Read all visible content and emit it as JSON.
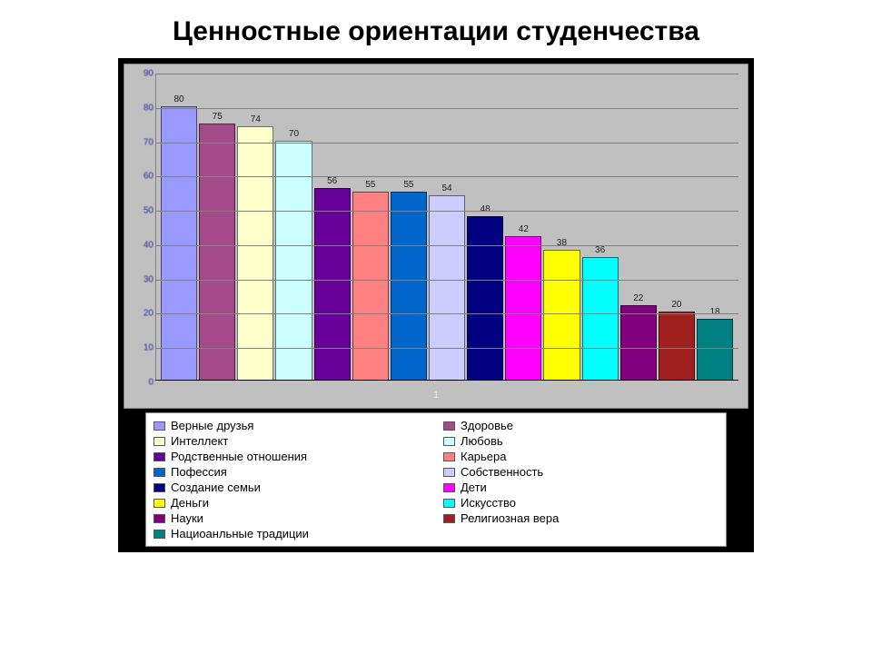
{
  "title": "Ценностные ориентации студенчества",
  "chart": {
    "type": "bar",
    "x_axis_label": "1",
    "background_color": "#c0c0c0",
    "outer_background": "#000000",
    "grid_color": "#808080",
    "y_tick_color": "#2a2aa0",
    "y_tick_fontsize": 10,
    "bar_label_fontsize": 10,
    "legend_fontsize": 13,
    "title_fontsize": 30,
    "bar_border_color": "rgba(0,0,0,0.55)",
    "ylim": [
      0,
      90
    ],
    "yticks": [
      0,
      10,
      20,
      30,
      40,
      50,
      60,
      70,
      80,
      90
    ],
    "series": [
      {
        "label": "Верные друзья",
        "value": 80,
        "color": "#9999ff"
      },
      {
        "label": "Здоровье",
        "value": 75,
        "color": "#a44a8a"
      },
      {
        "label": "Интеллект",
        "value": 74,
        "color": "#ffffcc"
      },
      {
        "label": "Любовь",
        "value": 70,
        "color": "#ccffff"
      },
      {
        "label": "Родственные отношения",
        "value": 56,
        "color": "#660099"
      },
      {
        "label": "Карьера",
        "value": 55,
        "color": "#ff8080"
      },
      {
        "label": "Пофессия",
        "value": 55,
        "color": "#0066cc"
      },
      {
        "label": "Собственность",
        "value": 54,
        "color": "#ccccff"
      },
      {
        "label": "Создание семьи",
        "value": 48,
        "color": "#000080"
      },
      {
        "label": "Дети",
        "value": 42,
        "color": "#ff00ff"
      },
      {
        "label": "Деньги",
        "value": 38,
        "color": "#ffff00"
      },
      {
        "label": "Искусство",
        "value": 36,
        "color": "#00ffff"
      },
      {
        "label": "Науки",
        "value": 22,
        "color": "#800080"
      },
      {
        "label": "Религиозная вера",
        "value": 20,
        "color": "#a02020"
      },
      {
        "label": "Нациоанльные традиции",
        "value": 18,
        "color": "#008080"
      }
    ],
    "legend_columns": 2
  }
}
